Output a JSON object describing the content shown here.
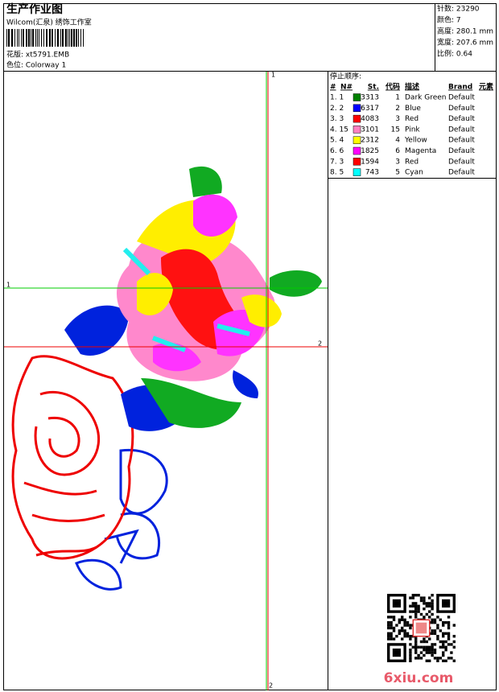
{
  "header": {
    "title": "生产作业图",
    "company": "Wilcom(汇泉) 绣饰工作室",
    "design": "花版: xt5791.EMB",
    "colorway": "色位: Colorway 1"
  },
  "info": [
    "针数: 23290",
    "颜色: 7",
    "高度: 280.1 mm",
    "宽度: 207.6 mm",
    "比例: 0.64"
  ],
  "guides": {
    "vertical_top": "1",
    "vertical_bottom": "2",
    "horizontal_left": "1",
    "horizontal_right": "2"
  },
  "stop_sequence": {
    "title": "停止顺序:",
    "columns": [
      "#",
      "N#",
      "St.",
      "代码",
      "描述",
      "Brand",
      "元素"
    ],
    "rows": [
      {
        "seq": "1. 1",
        "color": "#008000",
        "stitches": "3313",
        "code": "1",
        "description": "Dark Green",
        "brand": "Default"
      },
      {
        "seq": "2. 2",
        "color": "#0000ff",
        "stitches": "6317",
        "code": "2",
        "description": "Blue",
        "brand": "Default"
      },
      {
        "seq": "3. 3",
        "color": "#ff0000",
        "stitches": "4083",
        "code": "3",
        "description": "Red",
        "brand": "Default"
      },
      {
        "seq": "4. 15",
        "color": "#ff80c0",
        "stitches": "3101",
        "code": "15",
        "description": "Pink",
        "brand": "Default"
      },
      {
        "seq": "5. 4",
        "color": "#ffff00",
        "stitches": "2312",
        "code": "4",
        "description": "Yellow",
        "brand": "Default"
      },
      {
        "seq": "6. 6",
        "color": "#ff00ff",
        "stitches": "1825",
        "code": "6",
        "description": "Magenta",
        "brand": "Default"
      },
      {
        "seq": "7. 3",
        "color": "#ff0000",
        "stitches": "1594",
        "code": "3",
        "description": "Red",
        "brand": "Default"
      },
      {
        "seq": "8. 5",
        "color": "#00ffff",
        "stitches": "743",
        "code": "5",
        "description": "Cyan",
        "brand": "Default"
      }
    ]
  },
  "watermark": "6xiu.com"
}
